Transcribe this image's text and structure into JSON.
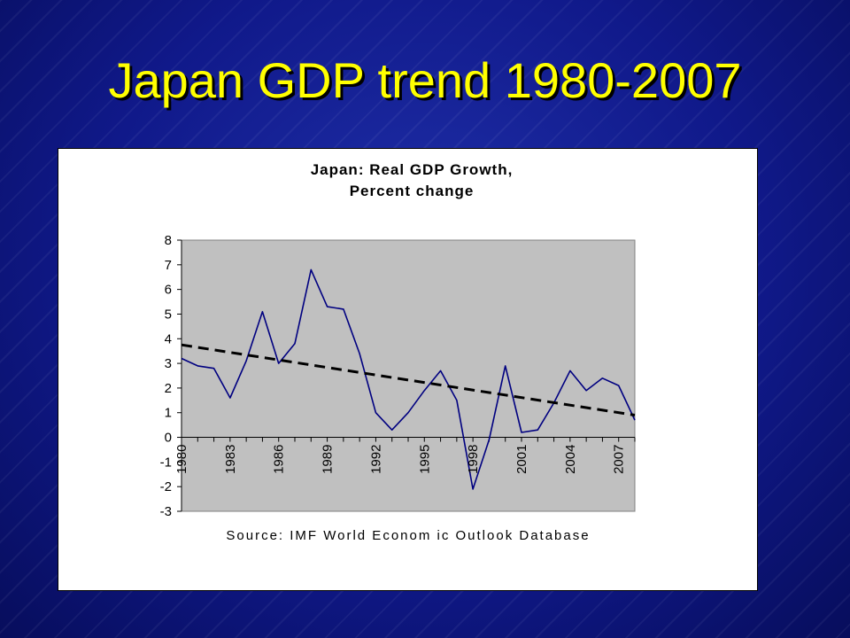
{
  "slide": {
    "title": "Japan GDP trend 1980-2007"
  },
  "colors": {
    "title": "#ffff00",
    "plot_background": "#c0c0c0",
    "series_line": "#000080",
    "trend_line": "#000000"
  },
  "chart_data": {
    "type": "line",
    "title_lines": [
      "Japan: Real GDP Growth,",
      "Percent change"
    ],
    "source_note": "Source: IMF World Econom ic Outlook Database",
    "ylim": [
      -3,
      8
    ],
    "yticks": [
      8,
      7,
      6,
      5,
      4,
      3,
      2,
      1,
      0,
      -1,
      -2,
      -3
    ],
    "x_range": [
      1980,
      2008
    ],
    "x_labeled_ticks": [
      "1980",
      "1983",
      "1986",
      "1989",
      "1992",
      "1995",
      "1998",
      "2001",
      "2004",
      "2007"
    ],
    "grid": false,
    "legend": "none",
    "series": [
      {
        "style": "solid",
        "x": [
          1980,
          1981,
          1982,
          1983,
          1984,
          1985,
          1986,
          1987,
          1988,
          1989,
          1990,
          1991,
          1992,
          1993,
          1994,
          1995,
          1996,
          1997,
          1998,
          1999,
          2000,
          2001,
          2002,
          2003,
          2004,
          2005,
          2006,
          2007,
          2008
        ],
        "values": [
          3.2,
          2.9,
          2.8,
          1.6,
          3.1,
          5.1,
          3.0,
          3.8,
          6.8,
          5.3,
          5.2,
          3.4,
          1.0,
          0.3,
          1.0,
          1.9,
          2.7,
          1.5,
          -2.1,
          -0.1,
          2.9,
          0.2,
          0.3,
          1.4,
          2.7,
          1.9,
          2.4,
          2.1,
          0.7
        ]
      },
      {
        "style": "dashed",
        "x": [
          1980,
          2008
        ],
        "values": [
          3.75,
          0.9
        ]
      }
    ]
  }
}
